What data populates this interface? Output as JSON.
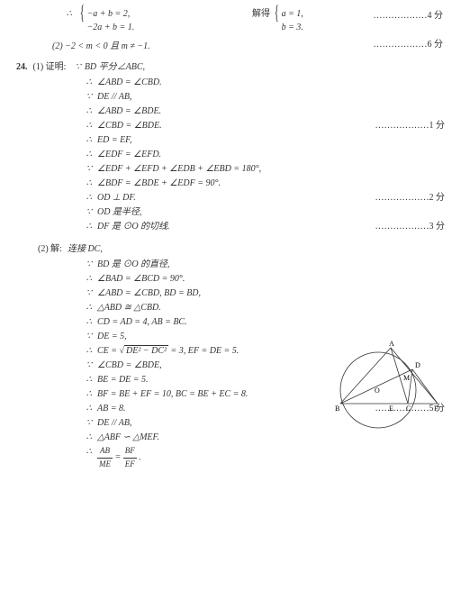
{
  "top": {
    "eq1": "−a + b = 2,",
    "eq2": "−2a + b = 1.",
    "solve": "解得",
    "r1": "a = 1,",
    "r2": "b = 3.",
    "score": "………………4 分"
  },
  "l2": {
    "text": "(2)  −2 < m < 0 且 m ≠ −1.",
    "score": "………………6 分"
  },
  "p24": {
    "num": "24.",
    "part1": "(1) 证明:",
    "st1": "BD 平分∠ABC,",
    "lines": [
      {
        "s": "t",
        "t": "∠ABD = ∠CBD."
      },
      {
        "s": "b",
        "t": "DE // AB,"
      },
      {
        "s": "t",
        "t": "∠ABD = ∠BDE."
      },
      {
        "s": "t",
        "t": "∠CBD = ∠BDE.",
        "sc": "………………1 分"
      },
      {
        "s": "t",
        "t": "ED = EF,"
      },
      {
        "s": "t",
        "t": "∠EDF = ∠EFD."
      },
      {
        "s": "b",
        "t": "∠EDF + ∠EFD + ∠EDB + ∠EBD = 180°,"
      },
      {
        "s": "t",
        "t": "∠BDF = ∠BDE + ∠EDF = 90°."
      },
      {
        "s": "t",
        "t": "OD ⊥ DF.",
        "sc": "………………2 分"
      },
      {
        "s": "b",
        "t": "OD 是半径,"
      },
      {
        "s": "t",
        "t": "DF 是 ⊙O 的切线.",
        "sc": "………………3 分"
      }
    ],
    "part2": "(2) 解:",
    "st2": "连接 DC,",
    "lines2": [
      {
        "s": "b",
        "t": "BD 是 ⊙O 的直径,"
      },
      {
        "s": "t",
        "t": "∠BAD = ∠BCD = 90°."
      },
      {
        "s": "b",
        "t": "∠ABD = ∠CBD,  BD = BD,"
      },
      {
        "s": "t",
        "t": "△ABD ≅ △CBD."
      },
      {
        "s": "t",
        "t": "CD = AD = 4,  AB = BC."
      },
      {
        "s": "b",
        "t": "DE = 5,"
      },
      {
        "s": "t",
        "html": "CE = √<span class='sqrt'>DE² − DC²</span> = 3,  EF = DE = 5."
      },
      {
        "s": "b",
        "t": "∠CBD = ∠BDE,"
      },
      {
        "s": "t",
        "t": "BE = DE = 5."
      },
      {
        "s": "t",
        "t": "BF = BE + EF = 10,  BC = BE + EC = 8."
      },
      {
        "s": "t",
        "t": "AB = 8.",
        "sc": "………………5 分"
      },
      {
        "s": "b",
        "t": "DE // AB,"
      },
      {
        "s": "t",
        "t": "△ABF ∽ △MEF."
      },
      {
        "s": "t",
        "html": "<span class='frac'><span class='n'>AB</span><span class='d'>ME</span></span> = <span class='frac'><span class='n'>BF</span><span class='d'>EF</span></span> ."
      }
    ]
  },
  "diagram": {
    "labels": [
      "A",
      "D",
      "M",
      "O",
      "B",
      "E",
      "C",
      "F"
    ]
  },
  "style": {
    "bg": "#ffffff",
    "text": "#333333",
    "fontsize": 10
  }
}
